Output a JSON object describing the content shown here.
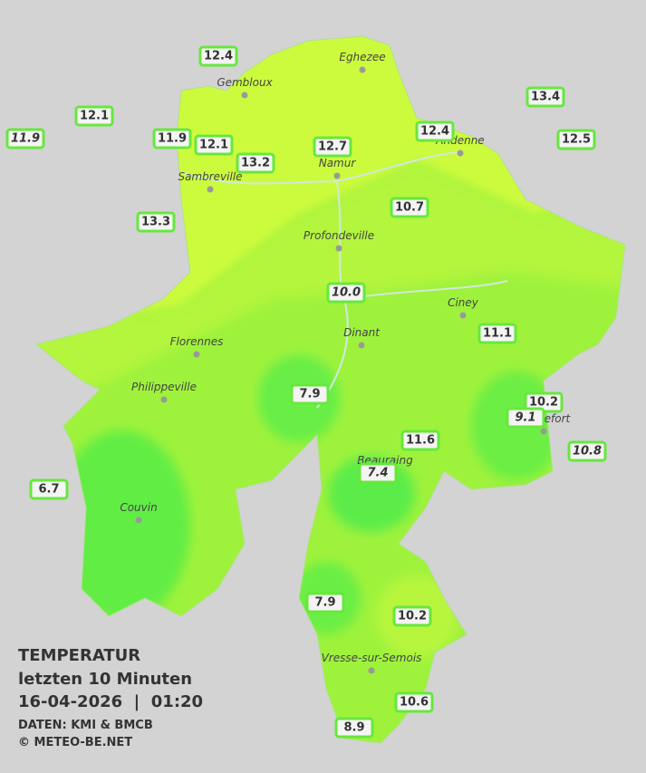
{
  "title": "TEMPERATUR",
  "subtitle": "letzten 10 Minuten",
  "datetime": "16-04-2026  |  01:20",
  "credits": [
    "DATEN: KMI & BMCB",
    "© METEO-BE.NET"
  ],
  "cities": [
    "Eghezee",
    "Gembloux",
    "Andenne",
    "Namur",
    "Sambreville",
    "Profondeville",
    "Ciney",
    "Dinant",
    "Florennes",
    "Philippeville",
    "Beauraing",
    "Rochefort",
    "Couvin",
    "Vresse-sur-Semois"
  ],
  "stations": [
    "12.4",
    "12.1",
    "11.9",
    "11.9",
    "12.1",
    "13.2",
    "12.7",
    "12.4",
    "13.4",
    "12.5",
    "13.3",
    "10.7",
    "10.0",
    "11.1",
    "7.9",
    "10.2",
    "9.1",
    "11.6",
    "10.8",
    "7.4",
    "6.7",
    "7.9",
    "10.2",
    "10.6",
    "8.9"
  ]
}
